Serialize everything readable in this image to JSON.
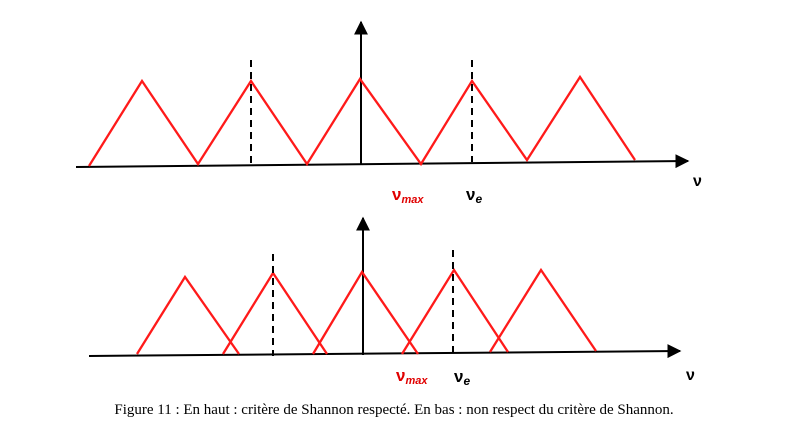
{
  "top": {
    "axis_label": "ν",
    "vmax_label": "ν",
    "vmax_sub": "max",
    "ve_label": "ν",
    "ve_sub": "e"
  },
  "bottom": {
    "axis_label": "ν",
    "vmax_label": "ν",
    "vmax_sub": "max",
    "ve_label": "ν",
    "ve_sub": "e"
  },
  "caption": "Figure 11 : En haut : critère de Shannon respecté. En bas : non respect du critère de Shannon.",
  "colors": {
    "spectrum": "#ff1a1a",
    "axis": "#000000",
    "vmax_label": "#e00000"
  }
}
